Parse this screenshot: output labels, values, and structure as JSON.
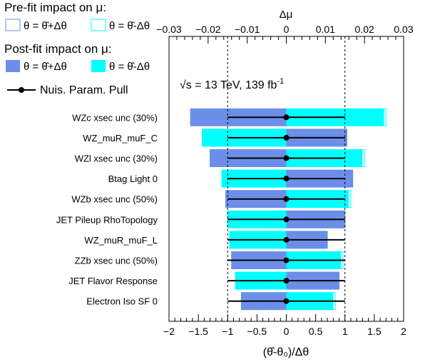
{
  "legend": {
    "prefit_title": "Pre-fit impact on  μ:",
    "prefit_up": "θ = θ̂+Δθ",
    "prefit_down": "θ = θ̂-Δθ",
    "postfit_title": "Post-fit impact on  μ:",
    "postfit_up": "θ = θ̂+Δθ",
    "postfit_down": "θ = θ̂-Δθ",
    "pull_label": "Nuis. Param. Pull"
  },
  "annotation": {
    "energy": "√s = 13 TeV, 139 fb",
    "lumi_exp": "-1"
  },
  "colors": {
    "up": "#6b8fe8",
    "down": "#00ffff"
  },
  "chart_data": {
    "type": "bar",
    "orientation": "horizontal",
    "xlabel": "(θ̂-θ₀)/Δθ",
    "x2label": "Δμ",
    "xlim": [
      -2,
      2
    ],
    "x2lim": [
      -0.03,
      0.03
    ],
    "xticks": [
      "−2",
      "−1.5",
      "−1",
      "−0.5",
      "0",
      "0.5",
      "1",
      "1.5",
      "2"
    ],
    "x2ticks": [
      "−0.03",
      "−0.02",
      "−0.01",
      "0",
      "0.01",
      "0.02",
      "0.03"
    ],
    "ref_lines": [
      -1,
      1
    ],
    "categories": [
      "WZc xsec unc (30%)",
      "WZ_muR_muF_C",
      "WZl xsec unc (30%)",
      "Btag Light 0",
      "WZb xsec unc (50%)",
      "JET Pileup RhoTopology",
      "WZ_muR_muF_L",
      "ZZb xsec unc (50%)",
      "JET Flavor Response",
      "Electron Iso SF 0"
    ],
    "postfit_up_dmu": [
      -0.0245,
      0.0155,
      -0.0195,
      0.017,
      -0.0155,
      0.015,
      0.0105,
      -0.014,
      0.0135,
      -0.0115
    ],
    "postfit_down_dmu": [
      0.025,
      -0.0215,
      0.0195,
      -0.0165,
      0.016,
      -0.015,
      -0.0145,
      0.014,
      -0.013,
      0.012
    ],
    "prefit_up_dmu": [
      -0.0245,
      0.0155,
      -0.0195,
      0.017,
      -0.0155,
      0.015,
      0.0105,
      -0.014,
      0.0135,
      -0.0115
    ],
    "prefit_down_dmu": [
      0.0255,
      -0.0215,
      0.02,
      -0.0165,
      0.0165,
      -0.015,
      -0.0145,
      0.0145,
      -0.013,
      0.0125
    ],
    "pull": [
      0,
      0,
      0,
      0,
      0,
      0,
      0,
      0,
      0,
      0
    ],
    "pull_err": [
      1,
      1,
      1,
      1,
      1,
      1,
      1,
      1,
      1,
      1
    ]
  }
}
